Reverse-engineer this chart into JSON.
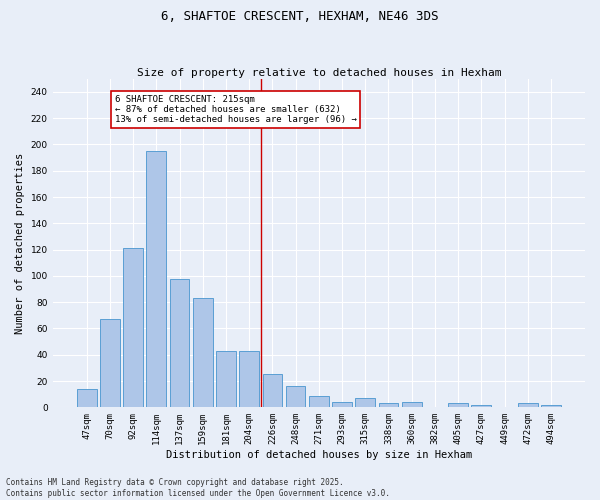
{
  "title": "6, SHAFTOE CRESCENT, HEXHAM, NE46 3DS",
  "subtitle": "Size of property relative to detached houses in Hexham",
  "xlabel": "Distribution of detached houses by size in Hexham",
  "ylabel": "Number of detached properties",
  "categories": [
    "47sqm",
    "70sqm",
    "92sqm",
    "114sqm",
    "137sqm",
    "159sqm",
    "181sqm",
    "204sqm",
    "226sqm",
    "248sqm",
    "271sqm",
    "293sqm",
    "315sqm",
    "338sqm",
    "360sqm",
    "382sqm",
    "405sqm",
    "427sqm",
    "449sqm",
    "472sqm",
    "494sqm"
  ],
  "values": [
    14,
    67,
    121,
    195,
    98,
    83,
    43,
    43,
    25,
    16,
    9,
    4,
    7,
    3,
    4,
    0,
    3,
    2,
    0,
    3,
    2
  ],
  "bar_color": "#aec6e8",
  "bar_edge_color": "#5a9fd4",
  "vline_x": 7.5,
  "vline_color": "#cc0000",
  "annotation_text": "6 SHAFTOE CRESCENT: 215sqm\n← 87% of detached houses are smaller (632)\n13% of semi-detached houses are larger (96) →",
  "annotation_box_color": "#ffffff",
  "annotation_box_edge_color": "#cc0000",
  "ylim": [
    0,
    250
  ],
  "yticks": [
    0,
    20,
    40,
    60,
    80,
    100,
    120,
    140,
    160,
    180,
    200,
    220,
    240
  ],
  "footer": "Contains HM Land Registry data © Crown copyright and database right 2025.\nContains public sector information licensed under the Open Government Licence v3.0.",
  "bg_color": "#e8eef8",
  "plot_bg_color": "#e8eef8",
  "grid_color": "#ffffff",
  "title_fontsize": 9,
  "subtitle_fontsize": 8,
  "axis_label_fontsize": 7.5,
  "tick_fontsize": 6.5,
  "annotation_fontsize": 6.5,
  "footer_fontsize": 5.5
}
